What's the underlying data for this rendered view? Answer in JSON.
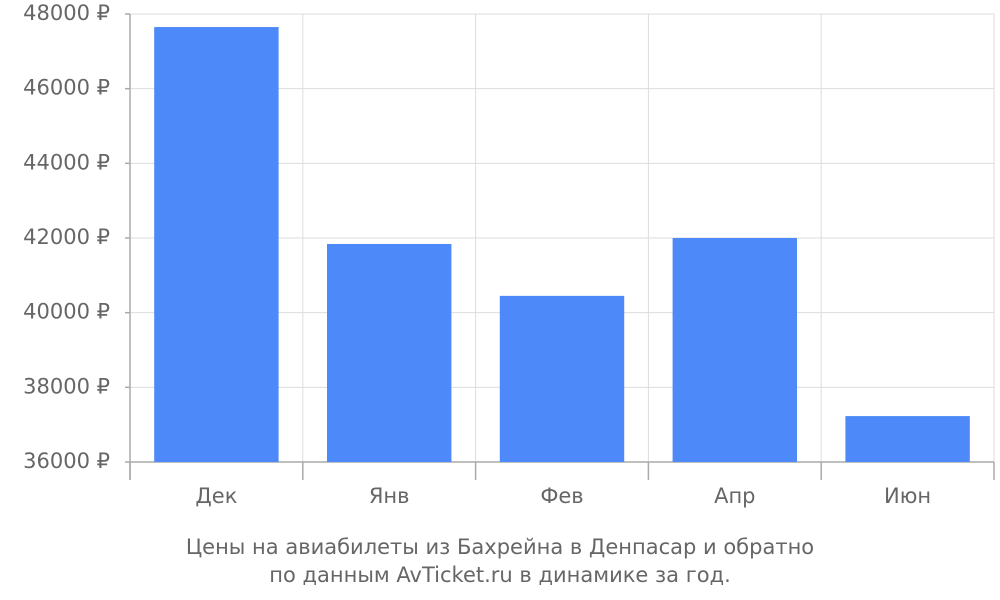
{
  "chart_data": {
    "type": "bar",
    "title": [
      "Цены на авиабилеты из Бахрейна в Денпасар и обратно",
      "по данным AvTicket.ru в динамике за год."
    ],
    "categories": [
      "Дек",
      "Янв",
      "Фев",
      "Апр",
      "Июн"
    ],
    "values": [
      47650,
      41840,
      40450,
      42000,
      37230
    ],
    "color": "#4d89f9",
    "ylim": [
      36000,
      48000
    ],
    "yticks": [
      {
        "value": 36000,
        "label": "36000 ₽"
      },
      {
        "value": 38000,
        "label": "38000 ₽"
      },
      {
        "value": 40000,
        "label": "40000 ₽"
      },
      {
        "value": 42000,
        "label": "42000 ₽"
      },
      {
        "value": 44000,
        "label": "44000 ₽"
      },
      {
        "value": 46000,
        "label": "46000 ₽"
      },
      {
        "value": 48000,
        "label": "48000 ₽"
      }
    ],
    "grid": true
  }
}
